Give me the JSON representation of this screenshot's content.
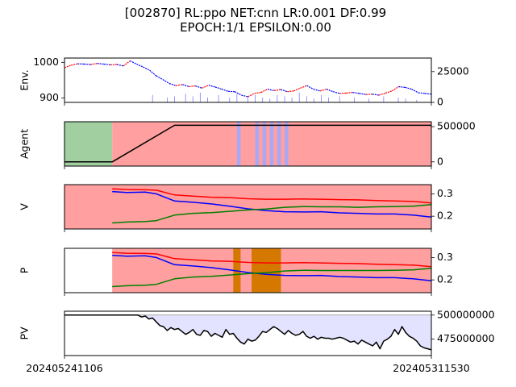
{
  "title_line1": "[002870] RL:ppo NET:cnn LR:0.001 DF:0.99",
  "title_line2": "EPOCH:1/1 EPSILON:0.00",
  "colors": {
    "buy": "#ff0000",
    "sell": "#0000ff",
    "hold": "#008000",
    "line": "#000000",
    "bg_red": "#ff9f9f",
    "bg_green": "#a1cf9f",
    "bg_blue_fill": "#e3e3ff",
    "exploration": "#d47800",
    "volume": "#7f7fff"
  },
  "x_tick_labels": [
    "202405241106",
    "202405311530"
  ],
  "chart_data": [
    {
      "type": "line",
      "name": "env",
      "ylabel": "Env.",
      "left_ylim": [
        888,
        1012
      ],
      "left_ticks": [
        "1000",
        "900"
      ],
      "right_ylim": [
        0,
        36000
      ],
      "right_ticks": [
        "25000",
        "0"
      ],
      "price": [
        985,
        992,
        996,
        995,
        994,
        997,
        995,
        993,
        994,
        990,
        1004,
        995,
        987,
        978,
        962,
        952,
        941,
        935,
        938,
        932,
        934,
        928,
        936,
        931,
        925,
        919,
        918,
        908,
        904,
        913,
        916,
        925,
        921,
        924,
        918,
        920,
        928,
        935,
        925,
        920,
        925,
        918,
        913,
        914,
        916,
        913,
        910,
        911,
        908,
        914,
        920,
        932,
        930,
        925,
        915,
        913,
        911
      ],
      "volume_spikes": [
        [
          24,
          6000
        ],
        [
          28,
          4000
        ],
        [
          30,
          5000
        ],
        [
          33,
          7000
        ],
        [
          35,
          5000
        ],
        [
          37,
          8000
        ],
        [
          39,
          4000
        ],
        [
          42,
          6000
        ],
        [
          45,
          4000
        ],
        [
          47,
          7000
        ],
        [
          50,
          5000
        ],
        [
          52,
          6000
        ],
        [
          54,
          4000
        ],
        [
          56,
          3000
        ],
        [
          58,
          6000
        ],
        [
          60,
          5000
        ],
        [
          62,
          4000
        ],
        [
          64,
          8000
        ],
        [
          66,
          5000
        ],
        [
          68,
          3000
        ],
        [
          70,
          6000
        ],
        [
          72,
          4000
        ],
        [
          75,
          5000
        ],
        [
          79,
          4000
        ],
        [
          83,
          3000
        ],
        [
          87,
          5000
        ],
        [
          91,
          4000
        ],
        [
          93,
          3000
        ],
        [
          96,
          2000
        ]
      ]
    },
    {
      "type": "line",
      "name": "agent",
      "ylabel": "Agent",
      "ylim": [
        -60000,
        570000
      ],
      "ticks": [
        "500000",
        "0"
      ],
      "tick_values": [
        500000,
        0
      ],
      "x": [
        0,
        13,
        30,
        36,
        48,
        58,
        100
      ],
      "values": [
        0,
        0,
        520000,
        520000,
        520000,
        520000,
        520000
      ],
      "green_region": [
        0,
        13
      ],
      "red_region": [
        13,
        100
      ],
      "blue_bands": [
        [
          47,
          48
        ],
        [
          52,
          53
        ],
        [
          54,
          55
        ],
        [
          56,
          57
        ],
        [
          58,
          59
        ],
        [
          60,
          61
        ]
      ]
    },
    {
      "type": "line",
      "name": "value",
      "ylabel": "V",
      "ylim": [
        0.143,
        0.341
      ],
      "ticks": [
        "0.3",
        "0.2"
      ],
      "tick_values": [
        0.3,
        0.2
      ],
      "x": [
        13,
        17,
        22,
        25,
        30,
        35,
        40,
        45,
        50,
        55,
        60,
        65,
        70,
        75,
        80,
        85,
        90,
        95,
        100
      ],
      "series": [
        {
          "key": "buy",
          "values": [
            0.322,
            0.319,
            0.318,
            0.316,
            0.295,
            0.29,
            0.285,
            0.283,
            0.278,
            0.276,
            0.276,
            0.277,
            0.276,
            0.274,
            0.273,
            0.27,
            0.268,
            0.266,
            0.259
          ]
        },
        {
          "key": "sell",
          "values": [
            0.31,
            0.306,
            0.308,
            0.3,
            0.268,
            0.262,
            0.255,
            0.245,
            0.233,
            0.225,
            0.22,
            0.219,
            0.22,
            0.215,
            0.213,
            0.21,
            0.21,
            0.205,
            0.196
          ]
        },
        {
          "key": "hold",
          "values": [
            0.17,
            0.174,
            0.176,
            0.18,
            0.205,
            0.213,
            0.216,
            0.222,
            0.228,
            0.232,
            0.24,
            0.243,
            0.242,
            0.242,
            0.24,
            0.242,
            0.243,
            0.245,
            0.252
          ]
        }
      ]
    },
    {
      "type": "line",
      "name": "policy",
      "ylabel": "P",
      "ylim": [
        0.143,
        0.341
      ],
      "ticks": [
        "0.3",
        "0.2"
      ],
      "tick_values": [
        0.3,
        0.2
      ],
      "x": [
        13,
        17,
        22,
        25,
        30,
        35,
        40,
        45,
        50,
        55,
        60,
        65,
        70,
        75,
        80,
        85,
        90,
        95,
        100
      ],
      "series": [
        {
          "key": "buy",
          "values": [
            0.322,
            0.319,
            0.318,
            0.316,
            0.295,
            0.29,
            0.285,
            0.283,
            0.278,
            0.276,
            0.276,
            0.277,
            0.276,
            0.274,
            0.273,
            0.27,
            0.268,
            0.266,
            0.259
          ]
        },
        {
          "key": "sell",
          "values": [
            0.31,
            0.306,
            0.308,
            0.3,
            0.268,
            0.262,
            0.255,
            0.245,
            0.233,
            0.225,
            0.22,
            0.219,
            0.22,
            0.215,
            0.213,
            0.21,
            0.21,
            0.205,
            0.196
          ]
        },
        {
          "key": "hold",
          "values": [
            0.17,
            0.174,
            0.176,
            0.18,
            0.205,
            0.213,
            0.216,
            0.222,
            0.228,
            0.232,
            0.24,
            0.243,
            0.242,
            0.242,
            0.242,
            0.242,
            0.243,
            0.245,
            0.252
          ]
        }
      ],
      "red_region": [
        13,
        100
      ],
      "exploration_bands": [
        [
          46,
          48
        ],
        [
          51,
          59
        ]
      ]
    },
    {
      "type": "area",
      "name": "portfolio_value",
      "ylabel": "PV",
      "ylim": [
        458000000,
        504000000
      ],
      "ticks": [
        "500000000",
        "475000000"
      ],
      "tick_values": [
        500000000,
        475000000
      ],
      "fill_base": 500000000,
      "values": [
        500000000,
        500000000,
        500000000,
        500000000,
        500000000,
        500000000,
        500000000,
        500000000,
        500000000,
        500000000,
        500000000,
        500000000,
        500000000,
        500000000,
        500000000,
        500000000,
        500000000,
        500000000,
        500000000,
        500000000,
        500000000,
        498000000,
        499000000,
        496000000,
        497000000,
        493000000,
        489000000,
        488000000,
        484000000,
        487000000,
        485000000,
        486000000,
        483000000,
        480000000,
        482000000,
        485000000,
        480000000,
        479000000,
        484000000,
        483000000,
        478000000,
        481000000,
        479000000,
        477000000,
        485000000,
        480000000,
        481000000,
        476000000,
        472000000,
        470000000,
        475000000,
        473000000,
        474000000,
        478000000,
        483000000,
        482000000,
        485000000,
        488000000,
        486000000,
        483000000,
        480000000,
        484000000,
        481000000,
        479000000,
        480000000,
        483000000,
        478000000,
        476000000,
        478000000,
        475000000,
        477000000,
        476000000,
        476000000,
        475000000,
        476000000,
        477000000,
        476000000,
        474000000,
        472000000,
        473000000,
        470000000,
        474000000,
        472000000,
        470000000,
        468000000,
        472000000,
        465000000,
        473000000,
        475000000,
        478000000,
        485000000,
        480000000,
        488000000,
        482000000,
        478000000,
        476000000,
        473000000,
        468000000,
        466000000,
        465000000,
        464000000
      ]
    }
  ]
}
